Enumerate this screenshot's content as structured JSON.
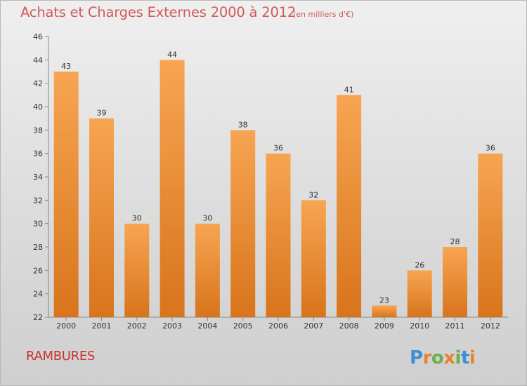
{
  "header": {
    "title": "Achats et Charges Externes 2000 à 2012",
    "subtitle": "(en milliers d'€)"
  },
  "footer": {
    "place": "RAMBURES",
    "brand": "Proxiti"
  },
  "colors": {
    "bar_light": "#f7a552",
    "bar_dark": "#d8741c",
    "title": "#d25a5a",
    "place": "#c8322c"
  },
  "chart_data": {
    "type": "bar",
    "categories": [
      "2000",
      "2001",
      "2002",
      "2003",
      "2004",
      "2005",
      "2006",
      "2007",
      "2008",
      "2009",
      "2010",
      "2011",
      "2012"
    ],
    "values": [
      43,
      39,
      30,
      44,
      30,
      38,
      36,
      32,
      41,
      23,
      26,
      28,
      36
    ],
    "ylim": [
      22,
      46
    ],
    "yticks": [
      22,
      24,
      26,
      28,
      30,
      32,
      34,
      36,
      38,
      40,
      42,
      44,
      46
    ],
    "grid": false,
    "title": "Achats et Charges Externes 2000 à 2012",
    "subtitle": "(en milliers d'€)",
    "data_labels": true
  }
}
